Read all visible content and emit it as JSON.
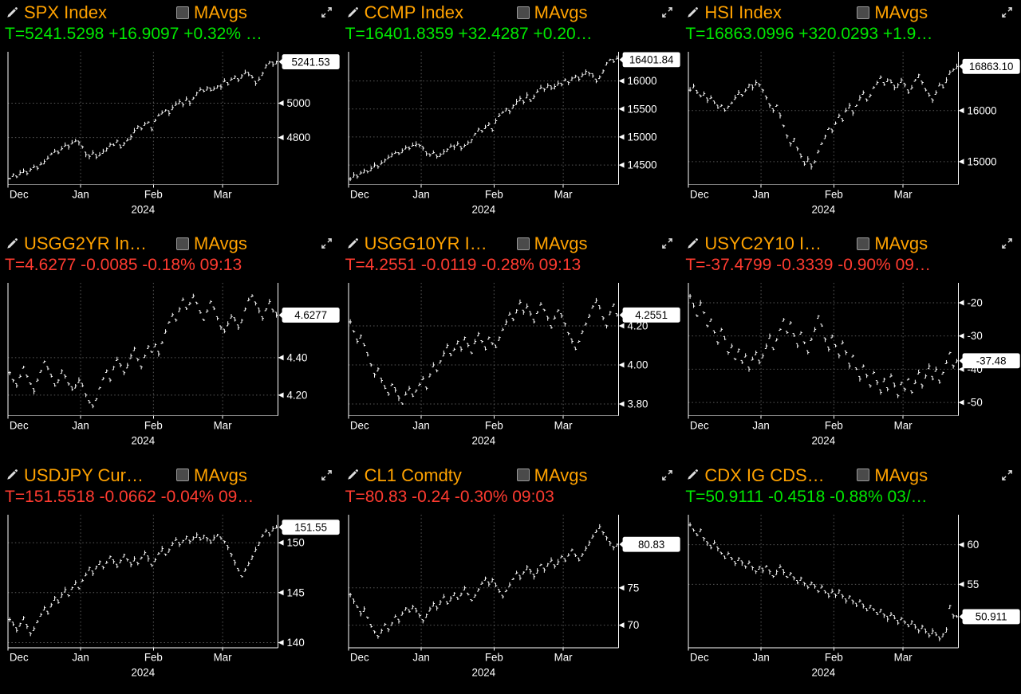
{
  "labels": {
    "mavgs": "MAvgs"
  },
  "colors": {
    "orange": "#ffa200",
    "up": "#00e800",
    "down": "#ff3b30",
    "axis": "#ffffff",
    "grid": "#5a5a5a",
    "badge_bg": "#ffffff",
    "badge_text": "#000000"
  },
  "chart_data": [
    {
      "type": "line",
      "bar_style": "hlc",
      "title": "SPX Index",
      "quote": "T=5241.5298 +16.9097 +0.32% …",
      "trend": "up",
      "last_label": "5241.53",
      "x_months": [
        "Dec",
        "Jan",
        "Feb",
        "Mar"
      ],
      "year": "2024",
      "month_starts": [
        0,
        21,
        42,
        62
      ],
      "y_ticks": [
        {
          "value": 5000,
          "label": "5000"
        },
        {
          "value": 4800,
          "label": "4800"
        }
      ],
      "ylim": [
        4525,
        5300
      ],
      "values": [
        4560,
        4585,
        4570,
        4595,
        4605,
        4590,
        4615,
        4630,
        4620,
        4645,
        4660,
        4680,
        4705,
        4720,
        4710,
        4735,
        4755,
        4745,
        4770,
        4780,
        4770,
        4745,
        4700,
        4690,
        4710,
        4685,
        4700,
        4720,
        4735,
        4760,
        4755,
        4780,
        4740,
        4765,
        4785,
        4805,
        4840,
        4865,
        4850,
        4880,
        4890,
        4845,
        4900,
        4930,
        4945,
        4960,
        4940,
        4975,
        4995,
        5010,
        4990,
        5025,
        5000,
        5030,
        5060,
        5080,
        5070,
        5090,
        5075,
        5085,
        5100,
        5095,
        5130,
        5110,
        5140,
        5155,
        5135,
        5160,
        5180,
        5165,
        5150,
        5115,
        5140,
        5175,
        5220,
        5240,
        5225,
        5241.53
      ]
    },
    {
      "type": "line",
      "bar_style": "hlc",
      "title": "CCMP Index",
      "quote": "T=16401.8359 +32.4287 +0.20…",
      "trend": "up",
      "last_label": "16401.84",
      "x_months": [
        "Dec",
        "Jan",
        "Feb",
        "Mar"
      ],
      "year": "2024",
      "month_starts": [
        0,
        21,
        42,
        62
      ],
      "y_ticks": [
        {
          "value": 16000,
          "label": "16000"
        },
        {
          "value": 15500,
          "label": "15500"
        },
        {
          "value": 15000,
          "label": "15000"
        },
        {
          "value": 14500,
          "label": "14500"
        }
      ],
      "ylim": [
        14150,
        16520
      ],
      "values": [
        14250,
        14320,
        14290,
        14360,
        14400,
        14380,
        14440,
        14500,
        14470,
        14540,
        14590,
        14640,
        14690,
        14720,
        14700,
        14760,
        14810,
        14790,
        14850,
        14870,
        14850,
        14800,
        14700,
        14680,
        14720,
        14650,
        14690,
        14740,
        14780,
        14840,
        14820,
        14880,
        14790,
        14850,
        14900,
        14950,
        15060,
        15140,
        15100,
        15180,
        15230,
        15120,
        15290,
        15390,
        15440,
        15500,
        15450,
        15560,
        15630,
        15690,
        15620,
        15750,
        15640,
        15720,
        15810,
        15880,
        15850,
        15920,
        15870,
        15900,
        15960,
        15930,
        16020,
        15970,
        16050,
        16090,
        16030,
        16110,
        16170,
        16130,
        16090,
        15990,
        16070,
        16180,
        16320,
        16380,
        16340,
        16401.84
      ]
    },
    {
      "type": "line",
      "bar_style": "hlc",
      "title": "HSI Index",
      "quote": "T=16863.0996 +320.0293 +1.9…",
      "trend": "up",
      "last_label": "16863.10",
      "x_months": [
        "Dec",
        "Jan",
        "Feb",
        "Mar"
      ],
      "year": "2024",
      "month_starts": [
        0,
        21,
        42,
        62
      ],
      "y_ticks": [
        {
          "value": 16000,
          "label": "16000"
        },
        {
          "value": 15000,
          "label": "15000"
        }
      ],
      "ylim": [
        14550,
        17150
      ],
      "values": [
        16400,
        16480,
        16350,
        16280,
        16330,
        16200,
        16250,
        16150,
        16050,
        16100,
        16000,
        16080,
        16150,
        16250,
        16350,
        16300,
        16400,
        16500,
        16450,
        16550,
        16500,
        16400,
        16250,
        16100,
        16000,
        16100,
        15900,
        15700,
        15500,
        15350,
        15450,
        15250,
        15100,
        14950,
        15050,
        14900,
        15000,
        15200,
        15350,
        15500,
        15650,
        15600,
        15750,
        15900,
        15800,
        16000,
        16100,
        15950,
        16100,
        16250,
        16350,
        16200,
        16300,
        16450,
        16550,
        16650,
        16500,
        16600,
        16550,
        16450,
        16500,
        16600,
        16500,
        16350,
        16450,
        16600,
        16700,
        16550,
        16400,
        16300,
        16200,
        16350,
        16500,
        16450,
        16600,
        16750,
        16800,
        16863.1
      ]
    },
    {
      "type": "line",
      "bar_style": "hlc",
      "title": "USGG2YR In…",
      "quote": "T=4.6277 -0.0085 -0.18% 09:13",
      "trend": "down",
      "last_label": "4.6277",
      "x_months": [
        "Dec",
        "Jan",
        "Feb",
        "Mar"
      ],
      "year": "2024",
      "month_starts": [
        0,
        21,
        42,
        62
      ],
      "y_ticks": [
        {
          "value": 4.4,
          "label": "4.40"
        },
        {
          "value": 4.2,
          "label": "4.20"
        }
      ],
      "ylim": [
        4.09,
        4.8
      ],
      "values": [
        4.32,
        4.28,
        4.25,
        4.3,
        4.35,
        4.3,
        4.26,
        4.22,
        4.28,
        4.33,
        4.38,
        4.34,
        4.3,
        4.25,
        4.28,
        4.33,
        4.3,
        4.26,
        4.23,
        4.25,
        4.28,
        4.25,
        4.2,
        4.16,
        4.14,
        4.18,
        4.24,
        4.29,
        4.33,
        4.28,
        4.35,
        4.39,
        4.36,
        4.32,
        4.36,
        4.41,
        4.45,
        4.39,
        4.35,
        4.41,
        4.46,
        4.43,
        4.47,
        4.42,
        4.48,
        4.54,
        4.59,
        4.63,
        4.6,
        4.66,
        4.71,
        4.66,
        4.69,
        4.73,
        4.69,
        4.64,
        4.6,
        4.65,
        4.7,
        4.66,
        4.61,
        4.56,
        4.54,
        4.58,
        4.62,
        4.6,
        4.56,
        4.6,
        4.66,
        4.71,
        4.73,
        4.69,
        4.65,
        4.61,
        4.66,
        4.7,
        4.65,
        4.6277
      ]
    },
    {
      "type": "line",
      "bar_style": "hlc",
      "title": "USGG10YR I…",
      "quote": "T=4.2551 -0.0119 -0.28% 09:13",
      "trend": "down",
      "last_label": "4.2551",
      "x_months": [
        "Dec",
        "Jan",
        "Feb",
        "Mar"
      ],
      "year": "2024",
      "month_starts": [
        0,
        21,
        42,
        62
      ],
      "y_ticks": [
        {
          "value": 4.2,
          "label": "4.20"
        },
        {
          "value": 4.0,
          "label": "4.00"
        },
        {
          "value": 3.8,
          "label": "3.80"
        }
      ],
      "ylim": [
        3.74,
        4.42
      ],
      "values": [
        4.22,
        4.17,
        4.12,
        4.15,
        4.1,
        4.05,
        4.0,
        3.95,
        3.98,
        3.92,
        3.88,
        3.85,
        3.9,
        3.87,
        3.83,
        3.8,
        3.85,
        3.88,
        3.84,
        3.87,
        3.9,
        3.93,
        3.88,
        3.95,
        4.0,
        3.97,
        4.02,
        4.06,
        4.1,
        4.05,
        4.08,
        4.12,
        4.08,
        4.14,
        4.1,
        4.06,
        4.12,
        4.16,
        4.12,
        4.08,
        4.14,
        4.11,
        4.09,
        4.14,
        4.18,
        4.22,
        4.26,
        4.23,
        4.28,
        4.32,
        4.27,
        4.3,
        4.26,
        4.22,
        4.27,
        4.31,
        4.28,
        4.24,
        4.19,
        4.24,
        4.28,
        4.25,
        4.21,
        4.16,
        4.12,
        4.08,
        4.12,
        4.17,
        4.21,
        4.25,
        4.3,
        4.33,
        4.29,
        4.24,
        4.2,
        4.27,
        4.31,
        4.2551
      ]
    },
    {
      "type": "line",
      "bar_style": "hlc",
      "title": "USYC2Y10 I…",
      "quote": "T=-37.4799 -0.3339 -0.90% 09…",
      "trend": "down",
      "last_label": "-37.48",
      "x_months": [
        "Dec",
        "Jan",
        "Feb",
        "Mar"
      ],
      "year": "2024",
      "month_starts": [
        0,
        21,
        42,
        62
      ],
      "y_ticks": [
        {
          "value": -20,
          "label": "-20"
        },
        {
          "value": -30,
          "label": "-30"
        },
        {
          "value": -40,
          "label": "-40"
        },
        {
          "value": -50,
          "label": "-50"
        }
      ],
      "ylim": [
        -54,
        -14
      ],
      "values": [
        -18,
        -21,
        -24,
        -20,
        -23,
        -27,
        -25,
        -29,
        -32,
        -28,
        -31,
        -35,
        -33,
        -37,
        -34,
        -38,
        -36,
        -40,
        -37,
        -35,
        -38,
        -36,
        -33,
        -30,
        -34,
        -31,
        -28,
        -25,
        -29,
        -26,
        -30,
        -33,
        -29,
        -32,
        -35,
        -31,
        -28,
        -24,
        -27,
        -31,
        -34,
        -30,
        -33,
        -36,
        -32,
        -35,
        -39,
        -36,
        -40,
        -43,
        -39,
        -42,
        -45,
        -41,
        -44,
        -47,
        -43,
        -46,
        -42,
        -45,
        -48,
        -44,
        -46,
        -43,
        -47,
        -44,
        -41,
        -45,
        -42,
        -39,
        -43,
        -40,
        -44,
        -41,
        -38,
        -35,
        -39,
        -37.48
      ]
    },
    {
      "type": "line",
      "bar_style": "hlc",
      "title": "USDJPY Cur…",
      "quote": "T=151.5518 -0.0662 -0.04% 09…",
      "trend": "down",
      "last_label": "151.55",
      "x_months": [
        "Dec",
        "Jan",
        "Feb",
        "Mar"
      ],
      "year": "2024",
      "month_starts": [
        0,
        21,
        42,
        62
      ],
      "y_ticks": [
        {
          "value": 150,
          "label": "150"
        },
        {
          "value": 145,
          "label": "145"
        },
        {
          "value": 140,
          "label": "140"
        }
      ],
      "ylim": [
        139.5,
        152.8
      ],
      "values": [
        142.3,
        141.8,
        141.2,
        141.9,
        142.5,
        141.6,
        140.9,
        141.4,
        142.1,
        142.8,
        143.5,
        142.9,
        143.8,
        144.5,
        144.0,
        144.8,
        145.3,
        144.7,
        145.5,
        146.0,
        145.4,
        146.2,
        146.8,
        147.5,
        146.9,
        147.6,
        148.1,
        147.5,
        148.0,
        148.6,
        148.1,
        147.6,
        148.2,
        148.8,
        148.3,
        147.8,
        148.4,
        147.9,
        148.5,
        149.0,
        148.4,
        147.7,
        148.3,
        148.9,
        149.4,
        148.8,
        149.3,
        149.9,
        150.3,
        149.8,
        150.2,
        150.6,
        150.1,
        150.5,
        150.8,
        150.3,
        150.7,
        150.4,
        150.0,
        150.5,
        150.8,
        150.4,
        150.1,
        149.5,
        148.8,
        148.0,
        147.2,
        146.6,
        147.3,
        147.9,
        148.6,
        149.3,
        150.0,
        150.7,
        151.2,
        150.8,
        151.4,
        151.55
      ]
    },
    {
      "type": "line",
      "bar_style": "hlc",
      "title": "CL1 Comdty",
      "quote": "T=80.83 -0.24 -0.30% 09:03",
      "trend": "down",
      "last_label": "80.83",
      "x_months": [
        "Dec",
        "Jan",
        "Feb",
        "Mar"
      ],
      "year": "2024",
      "month_starts": [
        0,
        21,
        42,
        62
      ],
      "y_ticks": [
        {
          "value": 75,
          "label": "75"
        },
        {
          "value": 70,
          "label": "70"
        }
      ],
      "ylim": [
        67.0,
        84.8
      ],
      "values": [
        74.1,
        73.2,
        72.4,
        71.5,
        72.2,
        71.0,
        69.8,
        69.1,
        68.5,
        69.3,
        70.1,
        69.4,
        70.3,
        71.2,
        70.5,
        71.6,
        72.3,
        71.8,
        72.5,
        71.9,
        71.3,
        70.6,
        71.4,
        72.2,
        72.9,
        72.3,
        73.1,
        73.8,
        72.9,
        73.6,
        74.3,
        73.5,
        74.2,
        75.0,
        74.1,
        73.3,
        74.0,
        74.8,
        75.6,
        76.3,
        75.5,
        76.1,
        75.3,
        74.5,
        73.8,
        74.6,
        75.4,
        76.2,
        77.0,
        76.3,
        77.1,
        77.8,
        77.2,
        76.5,
        77.3,
        78.1,
        77.4,
        78.2,
        78.7,
        77.9,
        78.5,
        79.2,
        78.6,
        79.4,
        80.1,
        79.3,
        78.7,
        79.5,
        80.3,
        81.1,
        81.9,
        82.6,
        83.2,
        82.4,
        81.7,
        81.0,
        80.4,
        80.83
      ]
    },
    {
      "type": "line",
      "bar_style": "hlc",
      "title": "CDX IG CDS…",
      "quote": "T=50.9111 -0.4518 -0.88% 03/…",
      "trend": "up",
      "last_label": "50.911",
      "x_months": [
        "Dec",
        "Jan",
        "Feb",
        "Mar"
      ],
      "year": "2024",
      "month_starts": [
        0,
        21,
        42,
        62
      ],
      "y_ticks": [
        {
          "value": 60,
          "label": "60"
        },
        {
          "value": 55,
          "label": "55"
        }
      ],
      "ylim": [
        47.0,
        63.8
      ],
      "values": [
        62.5,
        61.8,
        61.2,
        61.9,
        60.8,
        60.2,
        59.6,
        60.3,
        59.5,
        58.9,
        58.3,
        58.9,
        58.2,
        57.6,
        58.3,
        57.7,
        57.2,
        57.8,
        57.1,
        56.6,
        57.2,
        56.7,
        57.3,
        56.6,
        56.0,
        56.6,
        57.2,
        56.5,
        55.9,
        56.4,
        55.8,
        55.2,
        55.8,
        55.1,
        54.6,
        55.2,
        54.7,
        54.1,
        54.7,
        54.0,
        53.5,
        54.1,
        53.6,
        54.2,
        53.5,
        52.9,
        53.5,
        52.8,
        52.3,
        52.9,
        52.2,
        51.7,
        52.3,
        51.8,
        51.2,
        51.8,
        51.1,
        50.6,
        51.2,
        50.7,
        50.1,
        50.7,
        50.2,
        49.7,
        50.3,
        49.6,
        49.1,
        49.7,
        49.0,
        48.5,
        49.1,
        48.6,
        48.1,
        48.7,
        49.3,
        52.3,
        51.0,
        50.911
      ]
    }
  ]
}
